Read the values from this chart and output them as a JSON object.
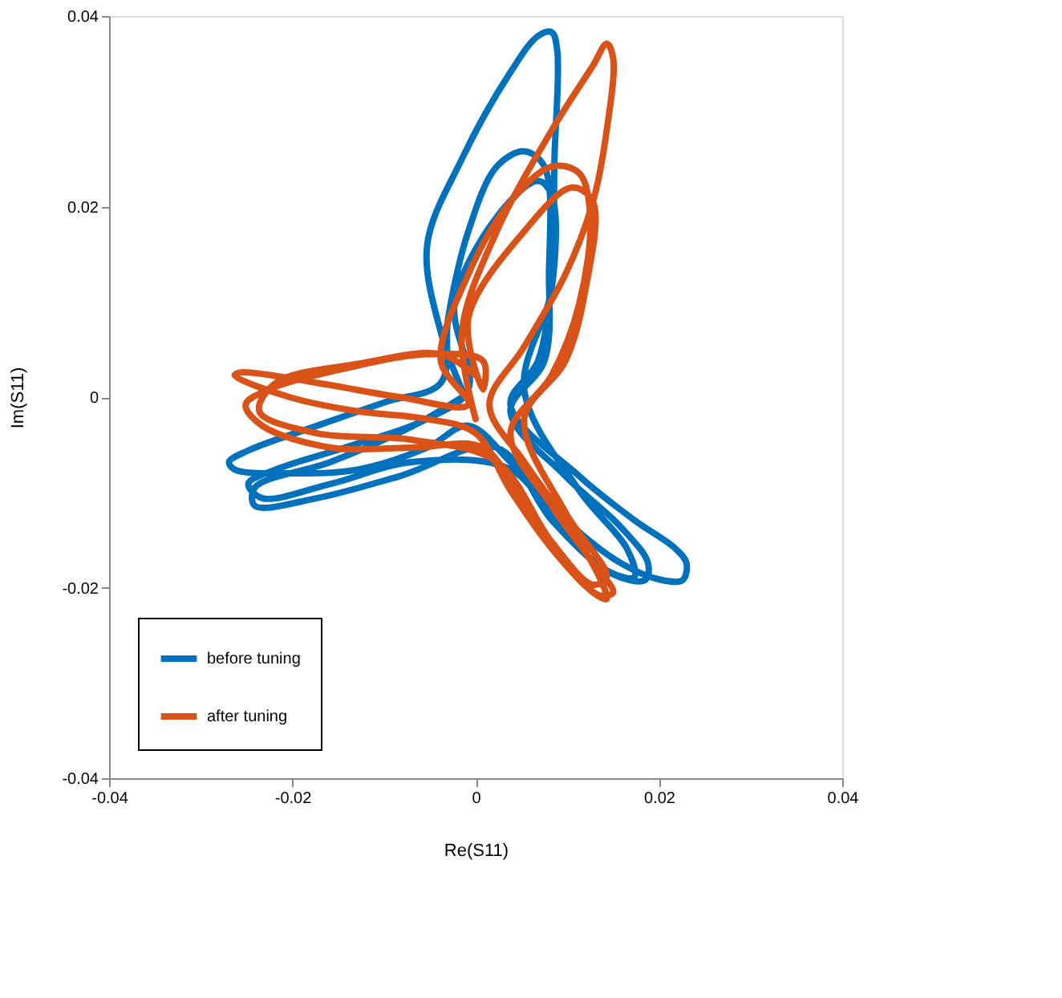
{
  "chart_data": {
    "type": "line",
    "xlabel": "Re(S11)",
    "ylabel": "Im(S11)",
    "xlim": [
      -0.04,
      0.04
    ],
    "ylim": [
      -0.04,
      0.04
    ],
    "xticks": [
      -0.04,
      -0.02,
      0,
      0.02,
      0.04
    ],
    "yticks": [
      -0.04,
      -0.02,
      0,
      0.02,
      0.04
    ],
    "grid": false,
    "legend": "bottom left",
    "marker": "none",
    "line_style": "solid",
    "series": [
      {
        "name": "before tuning",
        "color": "#0072bd",
        "x": [
          -0.0015,
          -0.0038,
          -0.0053,
          -0.0015,
          0.0038,
          0.0068,
          0.0083,
          0.0089,
          0.0086,
          0.0083,
          0.0068,
          0.0038,
          0.0113,
          0.0173,
          0.0218,
          0.023,
          0.0226,
          0.0203,
          0.0158,
          0.0098,
          0.0038,
          -0.0008,
          -0.0053,
          -0.0128,
          -0.0203,
          -0.0263,
          -0.0269,
          -0.0248,
          -0.0173,
          -0.0098,
          -0.0038,
          -0.003,
          -0.0008,
          0.0023,
          0.0053,
          0.0075,
          0.008,
          0.0075,
          0.0038,
          0.0098,
          0.0158,
          0.0188,
          0.0185,
          0.015,
          0.0098,
          0.0038,
          -0.0068,
          -0.0158,
          -0.0233,
          -0.0248,
          -0.0218,
          -0.0143,
          -0.0053,
          -0.0008,
          -0.0023,
          0.0023,
          0.0068,
          0.0083,
          0.0083,
          0.0053,
          0.0113,
          0.0165,
          0.0173,
          0.0143,
          0.0083,
          0.0023,
          -0.0083,
          -0.0173,
          -0.0241,
          -0.0241,
          -0.0158,
          -0.0068,
          -0.0015
        ],
        "values": [
          0.0008,
          0.0068,
          0.0159,
          0.025,
          0.0341,
          0.0379,
          0.0383,
          0.0364,
          0.025,
          0.0129,
          0.0038,
          -0.0008,
          -0.0083,
          -0.0129,
          -0.0159,
          -0.0174,
          -0.0192,
          -0.0192,
          -0.0174,
          -0.0129,
          -0.0068,
          -0.003,
          -0.0053,
          -0.0076,
          -0.008,
          -0.0076,
          -0.0068,
          -0.0056,
          -0.003,
          -0.0005,
          0.0015,
          0.0083,
          0.0174,
          0.0242,
          0.0258,
          0.0242,
          0.0129,
          0.0038,
          -0.0015,
          -0.0083,
          -0.0136,
          -0.0174,
          -0.0192,
          -0.0186,
          -0.0144,
          -0.0076,
          -0.0068,
          -0.0091,
          -0.0106,
          -0.0091,
          -0.0076,
          -0.0053,
          -0.0023,
          0.0008,
          0.0098,
          0.0189,
          0.0227,
          0.0212,
          0.0114,
          0.0008,
          -0.0098,
          -0.0159,
          -0.0189,
          -0.0182,
          -0.0129,
          -0.0053,
          -0.0083,
          -0.0106,
          -0.0114,
          -0.0095,
          -0.0068,
          -0.003,
          0.0
        ]
      },
      {
        "name": "after tuning",
        "color": "#d95319",
        "x": [
          0.0,
          -0.0015,
          0.0023,
          0.0083,
          0.0128,
          0.0143,
          0.015,
          0.0143,
          0.0128,
          0.0098,
          0.0053,
          0.0015,
          0.0053,
          0.0098,
          0.0135,
          0.0143,
          0.0128,
          0.0083,
          0.0038,
          0.0,
          -0.0053,
          -0.0128,
          -0.0203,
          -0.0263,
          -0.0256,
          -0.0173,
          -0.0083,
          -0.0008,
          -0.0038,
          -0.0008,
          0.0038,
          0.0083,
          0.0113,
          0.0125,
          0.0113,
          0.0083,
          0.0038,
          0.0083,
          0.0128,
          0.015,
          0.0135,
          0.0098,
          0.0053,
          0.0008,
          -0.0068,
          -0.0158,
          -0.0233,
          -0.0251,
          -0.0226,
          -0.0143,
          -0.0053,
          0.0008,
          0.0008,
          -0.0008,
          0.0053,
          0.0105,
          0.0128,
          0.012,
          0.0098,
          0.0053,
          0.0098,
          0.0143,
          0.0128,
          0.0083,
          0.0023,
          -0.0068,
          -0.0173,
          -0.0236,
          -0.0218,
          -0.0128,
          -0.0038,
          0.0
        ],
        "values": [
          -0.0023,
          0.0068,
          0.0174,
          0.028,
          0.0348,
          0.0371,
          0.0356,
          0.028,
          0.0205,
          0.0129,
          0.0053,
          -0.0008,
          -0.0068,
          -0.0129,
          -0.0189,
          -0.0212,
          -0.0205,
          -0.0159,
          -0.0098,
          -0.0038,
          -0.0023,
          -0.0015,
          0.0,
          0.0023,
          0.0026,
          0.0015,
          0.0,
          -0.0008,
          0.0038,
          0.0129,
          0.0205,
          0.0242,
          0.0235,
          0.0189,
          0.0098,
          0.0023,
          -0.0038,
          -0.0114,
          -0.0174,
          -0.0205,
          -0.0208,
          -0.0174,
          -0.0114,
          -0.0053,
          -0.0053,
          -0.0053,
          -0.003,
          -0.0008,
          0.0008,
          0.003,
          0.0045,
          0.0038,
          0.0008,
          0.0083,
          0.0174,
          0.022,
          0.0205,
          0.0114,
          0.0038,
          -0.0023,
          -0.0121,
          -0.0189,
          -0.0197,
          -0.0152,
          -0.0068,
          -0.0045,
          -0.0038,
          -0.0015,
          0.0015,
          0.0035,
          0.0045,
          0.0023
        ]
      }
    ]
  }
}
